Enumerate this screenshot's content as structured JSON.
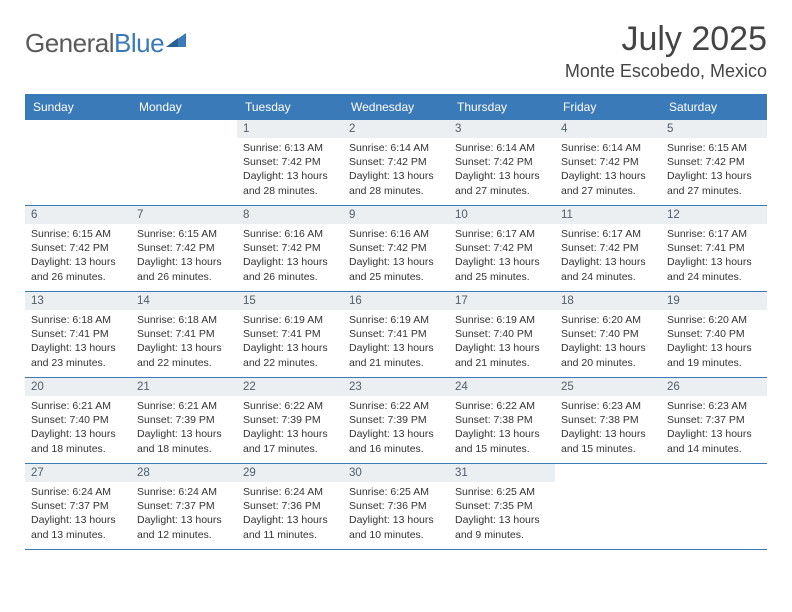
{
  "brand": {
    "text_part1": "General",
    "text_part2": "Blue",
    "color_gray": "#5a5a5a",
    "color_blue": "#3b7ab8"
  },
  "title": "July 2025",
  "location": "Monte Escobedo, Mexico",
  "colors": {
    "header_bg": "#3b7ab8",
    "header_text": "#ffffff",
    "datebar_bg": "#eceff1",
    "datebar_text": "#525d68",
    "row_border": "#3b7ab8",
    "body_text": "#333333",
    "page_bg": "#ffffff"
  },
  "day_headers": [
    "Sunday",
    "Monday",
    "Tuesday",
    "Wednesday",
    "Thursday",
    "Friday",
    "Saturday"
  ],
  "weeks": [
    [
      null,
      null,
      {
        "n": "1",
        "sr": "6:13 AM",
        "ss": "7:42 PM",
        "dl": "13 hours and 28 minutes."
      },
      {
        "n": "2",
        "sr": "6:14 AM",
        "ss": "7:42 PM",
        "dl": "13 hours and 28 minutes."
      },
      {
        "n": "3",
        "sr": "6:14 AM",
        "ss": "7:42 PM",
        "dl": "13 hours and 27 minutes."
      },
      {
        "n": "4",
        "sr": "6:14 AM",
        "ss": "7:42 PM",
        "dl": "13 hours and 27 minutes."
      },
      {
        "n": "5",
        "sr": "6:15 AM",
        "ss": "7:42 PM",
        "dl": "13 hours and 27 minutes."
      }
    ],
    [
      {
        "n": "6",
        "sr": "6:15 AM",
        "ss": "7:42 PM",
        "dl": "13 hours and 26 minutes."
      },
      {
        "n": "7",
        "sr": "6:15 AM",
        "ss": "7:42 PM",
        "dl": "13 hours and 26 minutes."
      },
      {
        "n": "8",
        "sr": "6:16 AM",
        "ss": "7:42 PM",
        "dl": "13 hours and 26 minutes."
      },
      {
        "n": "9",
        "sr": "6:16 AM",
        "ss": "7:42 PM",
        "dl": "13 hours and 25 minutes."
      },
      {
        "n": "10",
        "sr": "6:17 AM",
        "ss": "7:42 PM",
        "dl": "13 hours and 25 minutes."
      },
      {
        "n": "11",
        "sr": "6:17 AM",
        "ss": "7:42 PM",
        "dl": "13 hours and 24 minutes."
      },
      {
        "n": "12",
        "sr": "6:17 AM",
        "ss": "7:41 PM",
        "dl": "13 hours and 24 minutes."
      }
    ],
    [
      {
        "n": "13",
        "sr": "6:18 AM",
        "ss": "7:41 PM",
        "dl": "13 hours and 23 minutes."
      },
      {
        "n": "14",
        "sr": "6:18 AM",
        "ss": "7:41 PM",
        "dl": "13 hours and 22 minutes."
      },
      {
        "n": "15",
        "sr": "6:19 AM",
        "ss": "7:41 PM",
        "dl": "13 hours and 22 minutes."
      },
      {
        "n": "16",
        "sr": "6:19 AM",
        "ss": "7:41 PM",
        "dl": "13 hours and 21 minutes."
      },
      {
        "n": "17",
        "sr": "6:19 AM",
        "ss": "7:40 PM",
        "dl": "13 hours and 21 minutes."
      },
      {
        "n": "18",
        "sr": "6:20 AM",
        "ss": "7:40 PM",
        "dl": "13 hours and 20 minutes."
      },
      {
        "n": "19",
        "sr": "6:20 AM",
        "ss": "7:40 PM",
        "dl": "13 hours and 19 minutes."
      }
    ],
    [
      {
        "n": "20",
        "sr": "6:21 AM",
        "ss": "7:40 PM",
        "dl": "13 hours and 18 minutes."
      },
      {
        "n": "21",
        "sr": "6:21 AM",
        "ss": "7:39 PM",
        "dl": "13 hours and 18 minutes."
      },
      {
        "n": "22",
        "sr": "6:22 AM",
        "ss": "7:39 PM",
        "dl": "13 hours and 17 minutes."
      },
      {
        "n": "23",
        "sr": "6:22 AM",
        "ss": "7:39 PM",
        "dl": "13 hours and 16 minutes."
      },
      {
        "n": "24",
        "sr": "6:22 AM",
        "ss": "7:38 PM",
        "dl": "13 hours and 15 minutes."
      },
      {
        "n": "25",
        "sr": "6:23 AM",
        "ss": "7:38 PM",
        "dl": "13 hours and 15 minutes."
      },
      {
        "n": "26",
        "sr": "6:23 AM",
        "ss": "7:37 PM",
        "dl": "13 hours and 14 minutes."
      }
    ],
    [
      {
        "n": "27",
        "sr": "6:24 AM",
        "ss": "7:37 PM",
        "dl": "13 hours and 13 minutes."
      },
      {
        "n": "28",
        "sr": "6:24 AM",
        "ss": "7:37 PM",
        "dl": "13 hours and 12 minutes."
      },
      {
        "n": "29",
        "sr": "6:24 AM",
        "ss": "7:36 PM",
        "dl": "13 hours and 11 minutes."
      },
      {
        "n": "30",
        "sr": "6:25 AM",
        "ss": "7:36 PM",
        "dl": "13 hours and 10 minutes."
      },
      {
        "n": "31",
        "sr": "6:25 AM",
        "ss": "7:35 PM",
        "dl": "13 hours and 9 minutes."
      },
      null,
      null
    ]
  ],
  "labels": {
    "sunrise": "Sunrise:",
    "sunset": "Sunset:",
    "daylight": "Daylight:"
  }
}
